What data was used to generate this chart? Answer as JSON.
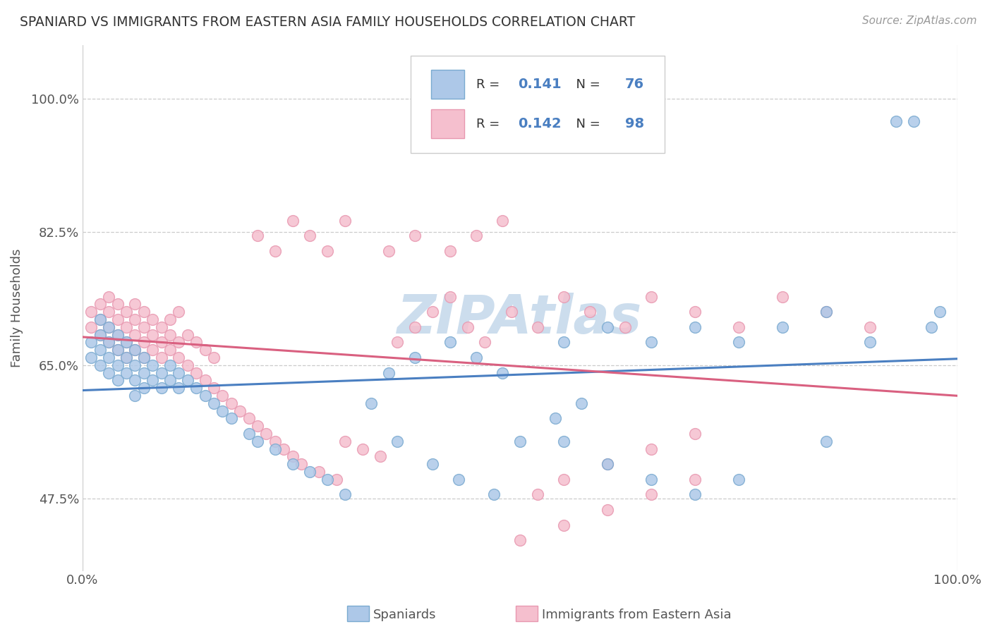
{
  "title": "SPANIARD VS IMMIGRANTS FROM EASTERN ASIA FAMILY HOUSEHOLDS CORRELATION CHART",
  "source_text": "Source: ZipAtlas.com",
  "ylabel": "Family Households",
  "watermark": "ZIPAtlas",
  "watermark_color": "#ccdded",
  "blue_color": "#adc8e8",
  "blue_edge": "#7aaad0",
  "pink_color": "#f5bfce",
  "pink_edge": "#e898b0",
  "blue_line_color": "#4a7fc1",
  "pink_line_color": "#d96080",
  "legend_R_color": "#4a7fc1",
  "legend_N_color": "#4a7fc1",
  "R1": "0.141",
  "N1": "76",
  "R2": "0.142",
  "N2": "98",
  "xlim": [
    0.0,
    1.0
  ],
  "ylim": [
    0.38,
    1.07
  ],
  "yticks": [
    0.475,
    0.65,
    0.825,
    1.0
  ],
  "ytick_labels": [
    "47.5%",
    "65.0%",
    "82.5%",
    "100.0%"
  ],
  "xtick_labels": [
    "0.0%",
    "100.0%"
  ],
  "sp_x": [
    0.01,
    0.01,
    0.02,
    0.02,
    0.02,
    0.02,
    0.03,
    0.03,
    0.03,
    0.03,
    0.04,
    0.04,
    0.04,
    0.04,
    0.05,
    0.05,
    0.05,
    0.06,
    0.06,
    0.06,
    0.06,
    0.07,
    0.07,
    0.07,
    0.08,
    0.08,
    0.09,
    0.09,
    0.1,
    0.1,
    0.11,
    0.11,
    0.12,
    0.13,
    0.14,
    0.15,
    0.16,
    0.17,
    0.19,
    0.2,
    0.22,
    0.24,
    0.26,
    0.28,
    0.3,
    0.33,
    0.36,
    0.4,
    0.43,
    0.47,
    0.5,
    0.54,
    0.57,
    0.35,
    0.38,
    0.42,
    0.45,
    0.48,
    0.55,
    0.6,
    0.65,
    0.7,
    0.75,
    0.8,
    0.85,
    0.9,
    0.93,
    0.95,
    0.55,
    0.6,
    0.65,
    0.7,
    0.75,
    0.85,
    0.97,
    0.98
  ],
  "sp_y": [
    0.68,
    0.66,
    0.69,
    0.67,
    0.71,
    0.65,
    0.68,
    0.7,
    0.66,
    0.64,
    0.67,
    0.65,
    0.69,
    0.63,
    0.66,
    0.68,
    0.64,
    0.67,
    0.65,
    0.63,
    0.61,
    0.66,
    0.64,
    0.62,
    0.65,
    0.63,
    0.64,
    0.62,
    0.65,
    0.63,
    0.64,
    0.62,
    0.63,
    0.62,
    0.61,
    0.6,
    0.59,
    0.58,
    0.56,
    0.55,
    0.54,
    0.52,
    0.51,
    0.5,
    0.48,
    0.6,
    0.55,
    0.52,
    0.5,
    0.48,
    0.55,
    0.58,
    0.6,
    0.64,
    0.66,
    0.68,
    0.66,
    0.64,
    0.68,
    0.7,
    0.68,
    0.7,
    0.68,
    0.7,
    0.72,
    0.68,
    0.97,
    0.97,
    0.55,
    0.52,
    0.5,
    0.48,
    0.5,
    0.55,
    0.7,
    0.72
  ],
  "im_x": [
    0.01,
    0.01,
    0.02,
    0.02,
    0.02,
    0.03,
    0.03,
    0.03,
    0.03,
    0.04,
    0.04,
    0.04,
    0.04,
    0.05,
    0.05,
    0.05,
    0.05,
    0.06,
    0.06,
    0.06,
    0.06,
    0.07,
    0.07,
    0.07,
    0.07,
    0.08,
    0.08,
    0.08,
    0.09,
    0.09,
    0.09,
    0.1,
    0.1,
    0.1,
    0.11,
    0.11,
    0.11,
    0.12,
    0.12,
    0.13,
    0.13,
    0.14,
    0.14,
    0.15,
    0.15,
    0.16,
    0.17,
    0.18,
    0.19,
    0.2,
    0.21,
    0.22,
    0.23,
    0.24,
    0.25,
    0.27,
    0.29,
    0.3,
    0.32,
    0.34,
    0.36,
    0.38,
    0.4,
    0.42,
    0.44,
    0.46,
    0.49,
    0.52,
    0.55,
    0.58,
    0.62,
    0.65,
    0.7,
    0.75,
    0.8,
    0.85,
    0.9,
    0.2,
    0.22,
    0.24,
    0.26,
    0.28,
    0.3,
    0.35,
    0.38,
    0.42,
    0.45,
    0.48,
    0.52,
    0.55,
    0.6,
    0.65,
    0.7,
    0.5,
    0.55,
    0.6,
    0.65,
    0.7
  ],
  "im_y": [
    0.72,
    0.7,
    0.73,
    0.71,
    0.69,
    0.72,
    0.7,
    0.68,
    0.74,
    0.71,
    0.69,
    0.73,
    0.67,
    0.7,
    0.68,
    0.72,
    0.66,
    0.69,
    0.71,
    0.67,
    0.73,
    0.68,
    0.7,
    0.66,
    0.72,
    0.67,
    0.71,
    0.69,
    0.68,
    0.7,
    0.66,
    0.67,
    0.69,
    0.71,
    0.66,
    0.68,
    0.72,
    0.65,
    0.69,
    0.64,
    0.68,
    0.63,
    0.67,
    0.62,
    0.66,
    0.61,
    0.6,
    0.59,
    0.58,
    0.57,
    0.56,
    0.55,
    0.54,
    0.53,
    0.52,
    0.51,
    0.5,
    0.55,
    0.54,
    0.53,
    0.68,
    0.7,
    0.72,
    0.74,
    0.7,
    0.68,
    0.72,
    0.7,
    0.74,
    0.72,
    0.7,
    0.74,
    0.72,
    0.7,
    0.74,
    0.72,
    0.7,
    0.82,
    0.8,
    0.84,
    0.82,
    0.8,
    0.84,
    0.8,
    0.82,
    0.8,
    0.82,
    0.84,
    0.48,
    0.5,
    0.52,
    0.54,
    0.56,
    0.42,
    0.44,
    0.46,
    0.48,
    0.5
  ]
}
